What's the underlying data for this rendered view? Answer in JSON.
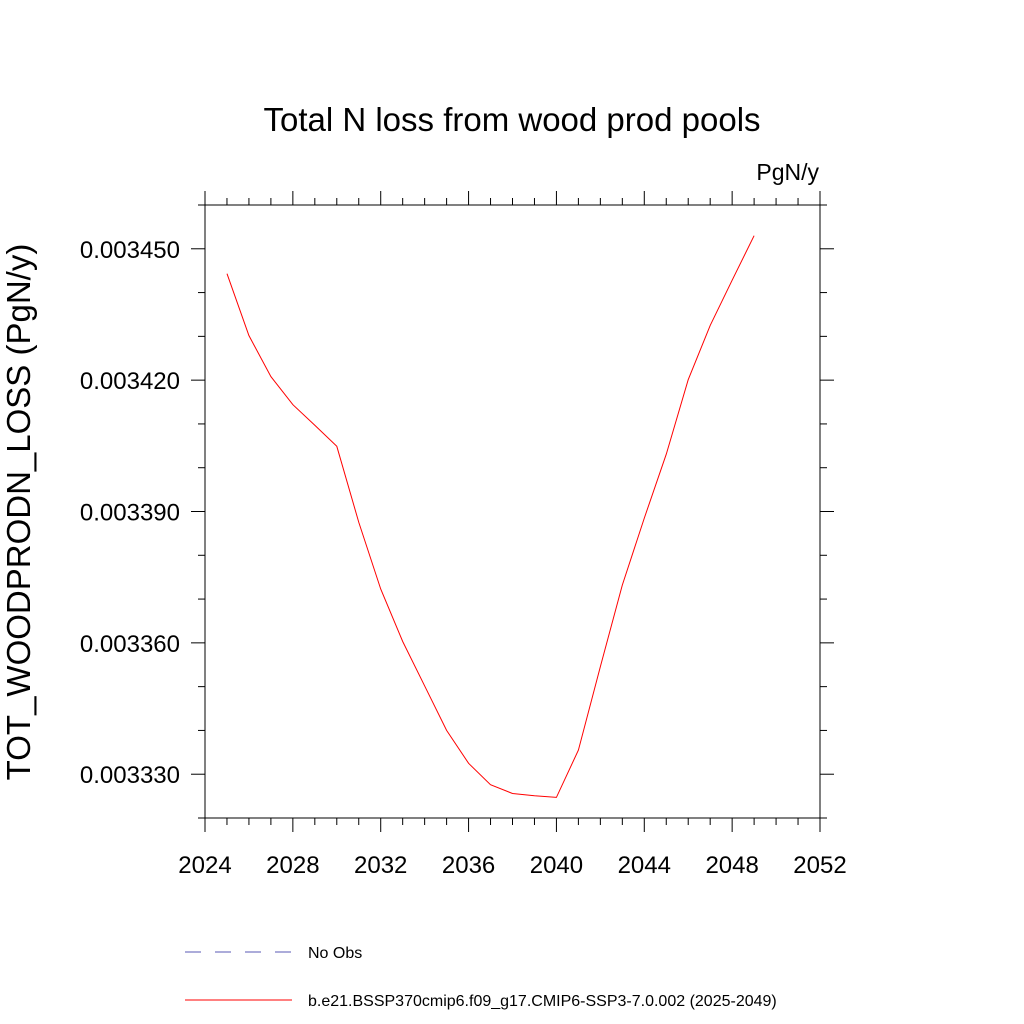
{
  "chart_data": {
    "type": "line",
    "title": "Total N loss from wood prod pools",
    "units_label": "PgN/y",
    "xlabel": "",
    "ylabel": "TOT_WOODPRODN_LOSS  (PgN/y)",
    "xlim": [
      2024,
      2052
    ],
    "ylim": [
      0.00332,
      0.00346
    ],
    "x_ticks": [
      2024,
      2028,
      2032,
      2036,
      2040,
      2044,
      2048,
      2052
    ],
    "x_tick_labels": [
      "2024",
      "2028",
      "2032",
      "2036",
      "2040",
      "2044",
      "2048",
      "2052"
    ],
    "y_ticks": [
      0.00333,
      0.00336,
      0.00339,
      0.00342,
      0.00345
    ],
    "y_tick_labels": [
      "0.003330",
      "0.003360",
      "0.003390",
      "0.003420",
      "0.003450"
    ],
    "grid": false,
    "legend_position": "bottom",
    "series": [
      {
        "name": "b.e21.BSSP370cmip6.f09_g17.CMIP6-SSP3-7.0.002 (2025-2049)",
        "color": "#ff0000",
        "style": "solid",
        "x": [
          2025,
          2026,
          2027,
          2028,
          2029,
          2030,
          2031,
          2032,
          2033,
          2034,
          2035,
          2036,
          2037,
          2038,
          2039,
          2040,
          2041,
          2042,
          2043,
          2044,
          2045,
          2046,
          2047,
          2048,
          2049
        ],
        "y": [
          0.0034443,
          0.0034302,
          0.0034208,
          0.0034144,
          0.0034097,
          0.0034049,
          0.0033875,
          0.0033723,
          0.0033603,
          0.0033502,
          0.00334,
          0.0033325,
          0.0033276,
          0.0033256,
          0.0033251,
          0.0033247,
          0.0033355,
          0.0033546,
          0.0033732,
          0.0033885,
          0.0034031,
          0.0034201,
          0.0034325,
          0.0034428,
          0.003453
        ]
      }
    ],
    "legend": [
      {
        "label": "No Obs",
        "color": "#5a5ab4",
        "style": "dashed"
      },
      {
        "label": "b.e21.BSSP370cmip6.f09_g17.CMIP6-SSP3-7.0.002 (2025-2049)",
        "color": "#ff0000",
        "style": "solid"
      }
    ]
  }
}
